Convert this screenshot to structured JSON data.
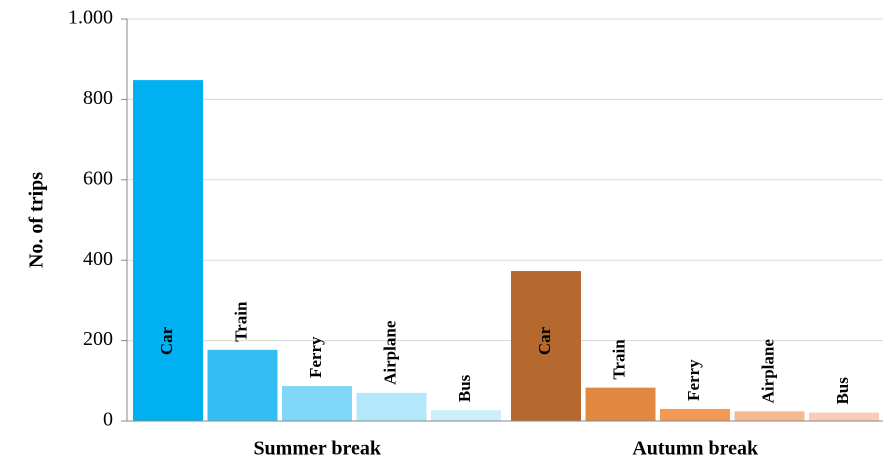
{
  "chart_data": {
    "type": "bar",
    "y_label": "No. of trips",
    "categories": [
      "Summer break",
      "Autumn break"
    ],
    "series": [
      {
        "name": "Car",
        "color": [
          "#00b0f0",
          "#b5692f"
        ],
        "values": [
          848,
          373
        ]
      },
      {
        "name": "Train",
        "color": [
          "#33bff3",
          "#e0883f"
        ],
        "values": [
          177,
          83
        ]
      },
      {
        "name": "Ferry",
        "color": [
          "#80d7f7",
          "#f29a55"
        ],
        "values": [
          87,
          30
        ]
      },
      {
        "name": "Airplane",
        "color": [
          "#b3e7fa",
          "#f6b991"
        ],
        "values": [
          70,
          24
        ]
      },
      {
        "name": "Bus",
        "color": [
          "#cceffc",
          "#f8cdb7"
        ],
        "values": [
          27,
          21
        ]
      }
    ],
    "ylim": [
      0,
      1000
    ],
    "yticks": [
      0,
      200,
      400,
      600,
      800,
      {
        "value": 1000,
        "label": "1.000"
      }
    ],
    "grid": true
  }
}
